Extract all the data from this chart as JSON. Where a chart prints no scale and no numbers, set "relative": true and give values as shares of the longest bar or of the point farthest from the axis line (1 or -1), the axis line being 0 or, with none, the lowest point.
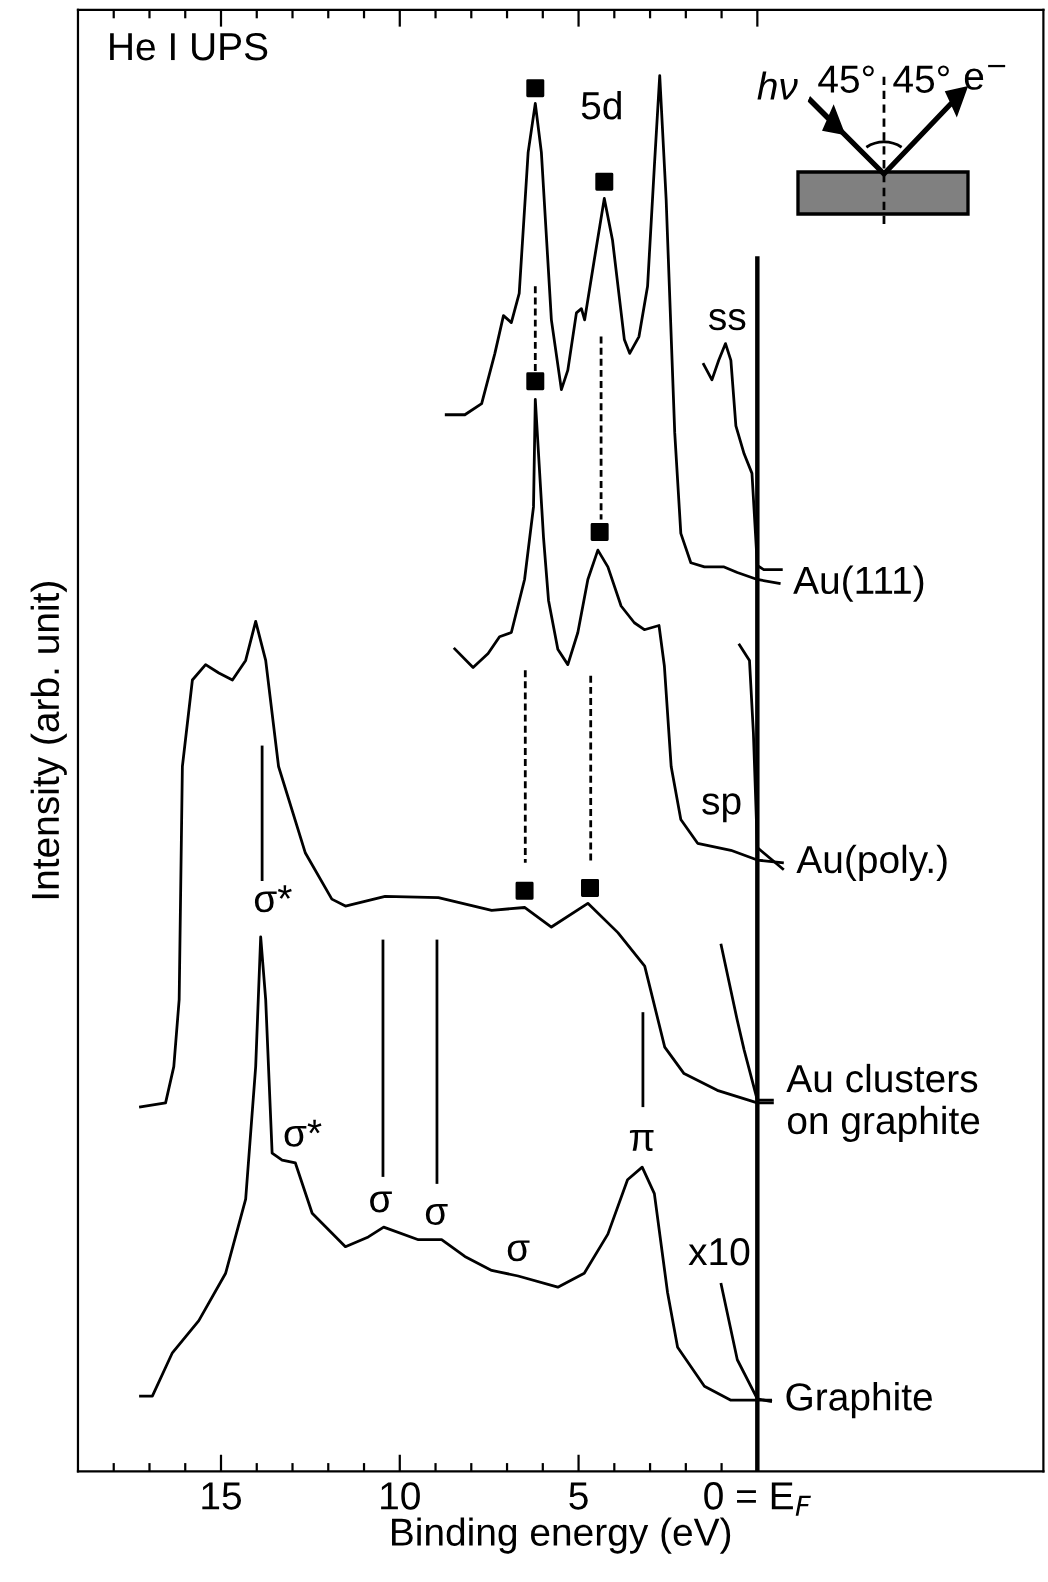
{
  "chart_data": {
    "type": "line",
    "relative": true,
    "title": "He I UPS",
    "xlabel": "Binding energy (eV)",
    "ylabel": "Intensity (arb. unit)",
    "xlim": [
      19,
      -8
    ],
    "tick_labels": "x",
    "ref_lines": [
      {
        "axis": "x",
        "value": 0,
        "color": "#000000",
        "line_style": "solid"
      }
    ],
    "line_style": "solid",
    "marker": "none",
    "xticks": [
      15,
      10,
      5,
      {
        "value": 0,
        "label": "0 = E$_{F}$"
      },
      {
        "value": 18,
        "label": null
      },
      {
        "value": 17,
        "label": null
      },
      {
        "value": 16,
        "label": null
      },
      {
        "value": 14,
        "label": null
      },
      {
        "value": 13,
        "label": null
      },
      {
        "value": 12,
        "label": null
      },
      {
        "value": 11,
        "label": null
      },
      {
        "value": 9,
        "label": null
      },
      {
        "value": 8,
        "label": null
      },
      {
        "value": 7,
        "label": null
      },
      {
        "value": 6,
        "label": null
      },
      {
        "value": 4,
        "label": null
      },
      {
        "value": 3,
        "label": null
      },
      {
        "value": 2,
        "label": null
      },
      {
        "value": 1,
        "label": null
      }
    ],
    "series": [
      {
        "name": "Au(111)",
        "color": "#000000",
        "x": [
          8.74,
          8.18,
          7.71,
          7.34,
          7.1,
          6.88,
          6.66,
          6.41,
          6.21,
          6.04,
          5.76,
          5.48,
          5.3,
          5.06,
          4.92,
          4.83,
          4.56,
          4.28,
          4.05,
          3.72,
          3.57,
          3.31,
          3.07,
          2.88,
          2.73,
          2.55,
          2.31,
          2.14,
          1.86,
          1.48,
          0.93,
          0.56,
          0,
          -0.65
        ],
        "values": [
          0.757,
          0.757,
          0.765,
          0.801,
          0.828,
          0.823,
          0.844,
          0.945,
          0.98,
          0.945,
          0.825,
          0.775,
          0.789,
          0.83,
          0.833,
          0.825,
          0.868,
          0.912,
          0.882,
          0.811,
          0.801,
          0.813,
          0.849,
          0.935,
          1.0,
          0.911,
          0.744,
          0.672,
          0.651,
          0.648,
          0.648,
          0.644,
          0.639,
          0.636
        ]
      },
      {
        "color": "#000000",
        "x": [
          1.52,
          1.27,
          1.08,
          0.89,
          0.74,
          0.6,
          0.37,
          0.15,
          0,
          -0.18,
          -0.71
        ],
        "values": [
          0.794,
          0.782,
          0.796,
          0.808,
          0.796,
          0.749,
          0.729,
          0.715,
          0.649,
          0.646,
          0.646
        ]
      },
      {
        "name": "Au(poly.)",
        "color": "#000000",
        "x": [
          8.49,
          7.95,
          7.53,
          7.21,
          6.88,
          6.51,
          6.26,
          6.21,
          5.98,
          5.84,
          5.58,
          5.3,
          5.02,
          4.74,
          4.46,
          4.18,
          3.81,
          3.44,
          3.16,
          2.75,
          2.6,
          2.41,
          2.14,
          1.67,
          0.74,
          0,
          -0.74
        ],
        "values": [
          0.59,
          0.576,
          0.586,
          0.598,
          0.601,
          0.639,
          0.691,
          0.768,
          0.669,
          0.624,
          0.589,
          0.578,
          0.601,
          0.639,
          0.66,
          0.648,
          0.62,
          0.608,
          0.603,
          0.606,
          0.577,
          0.505,
          0.467,
          0.45,
          0.445,
          0.438,
          0.436
        ]
      },
      {
        "color": "#000000",
        "x": [
          0.52,
          0.22,
          0.11,
          0,
          -0.18,
          -0.74
        ],
        "values": [
          0.593,
          0.581,
          0.529,
          0.447,
          0.443,
          0.431
        ]
      },
      {
        "name": "Au clusters\non graphite",
        "color": "#000000",
        "x": [
          17.29,
          16.55,
          16.32,
          16.17,
          16.08,
          15.8,
          15.43,
          15.06,
          14.68,
          14.31,
          14.03,
          13.75,
          13.39,
          12.64,
          11.9,
          11.52,
          10.41,
          8.92,
          7.43,
          6.51,
          5.76,
          4.74,
          3.9,
          3.15,
          2.59,
          2.05,
          1.12,
          0,
          -0.46
        ],
        "values": [
          0.261,
          0.264,
          0.29,
          0.338,
          0.505,
          0.567,
          0.578,
          0.572,
          0.567,
          0.581,
          0.609,
          0.581,
          0.505,
          0.443,
          0.41,
          0.405,
          0.412,
          0.411,
          0.402,
          0.404,
          0.39,
          0.407,
          0.386,
          0.362,
          0.304,
          0.285,
          0.273,
          0.264,
          0.264
        ]
      },
      {
        "color": "#000000",
        "x": [
          1.02,
          0.56,
          0.37,
          0,
          -0.46
        ],
        "values": [
          0.378,
          0.323,
          0.302,
          0.266,
          0.266
        ]
      },
      {
        "name": "Graphite",
        "color": "#000000",
        "x": [
          17.29,
          16.92,
          16.36,
          15.62,
          14.87,
          14.31,
          14.03,
          13.89,
          13.75,
          13.57,
          13.29,
          12.92,
          12.45,
          11.52,
          10.88,
          10.45,
          9.48,
          8.83,
          8.18,
          7.43,
          6.69,
          5.58,
          4.84,
          4.18,
          3.63,
          3.22,
          2.88,
          2.51,
          2.23,
          1.48,
          0.74,
          0,
          -0.41
        ],
        "values": [
          0.054,
          0.054,
          0.085,
          0.108,
          0.142,
          0.195,
          0.29,
          0.383,
          0.338,
          0.228,
          0.223,
          0.221,
          0.185,
          0.161,
          0.168,
          0.175,
          0.166,
          0.166,
          0.154,
          0.144,
          0.14,
          0.132,
          0.142,
          0.17,
          0.209,
          0.218,
          0.199,
          0.128,
          0.089,
          0.061,
          0.051,
          0.051,
          0.051
        ]
      },
      {
        "color": "#000000",
        "x": [
          1.02,
          0.56,
          0,
          -0.41
        ],
        "values": [
          0.135,
          0.08,
          0.052,
          0.05
        ]
      },
      {
        "color": "#000000",
        "x": [
          13.85,
          13.85
        ],
        "values": [
          0.52,
          0.423
        ]
      },
      {
        "color": "#000000",
        "x": [
          10.47,
          10.47
        ],
        "values": [
          0.381,
          0.211
        ]
      },
      {
        "color": "#000000",
        "x": [
          8.96,
          8.96
        ],
        "values": [
          0.381,
          0.206
        ]
      },
      {
        "color": "#000000",
        "x": [
          3.2,
          3.2
        ],
        "values": [
          0.329,
          0.261
        ]
      },
      {
        "color": "#000000",
        "line_style": "dashed",
        "x": [
          6.21,
          6.21
        ],
        "values": [
          0.849,
          0.787
        ]
      },
      {
        "color": "#000000",
        "line_style": "dashed",
        "x": [
          4.37,
          4.37
        ],
        "values": [
          0.813,
          0.682
        ]
      },
      {
        "color": "#000000",
        "line_style": "dashed",
        "x": [
          6.49,
          6.49
        ],
        "values": [
          0.574,
          0.436
        ]
      },
      {
        "color": "#000000",
        "line_style": "dashed",
        "x": [
          4.66,
          4.66
        ],
        "values": [
          0.57,
          0.436
        ]
      },
      {
        "type": "scatter",
        "marker": "square",
        "color": "#000000",
        "x": [
          6.21,
          4.28,
          6.21,
          4.41,
          6.51,
          4.68
        ],
        "values": [
          0.991,
          0.924,
          0.781,
          0.673,
          0.416,
          0.418
        ]
      }
    ],
    "annotations": [
      "5d",
      "ss",
      "sp",
      "σ*",
      "σ*",
      "σ",
      "σ",
      "σ",
      "π",
      "x10",
      "hν",
      "45°",
      "45°",
      "e$^{−}$"
    ]
  }
}
